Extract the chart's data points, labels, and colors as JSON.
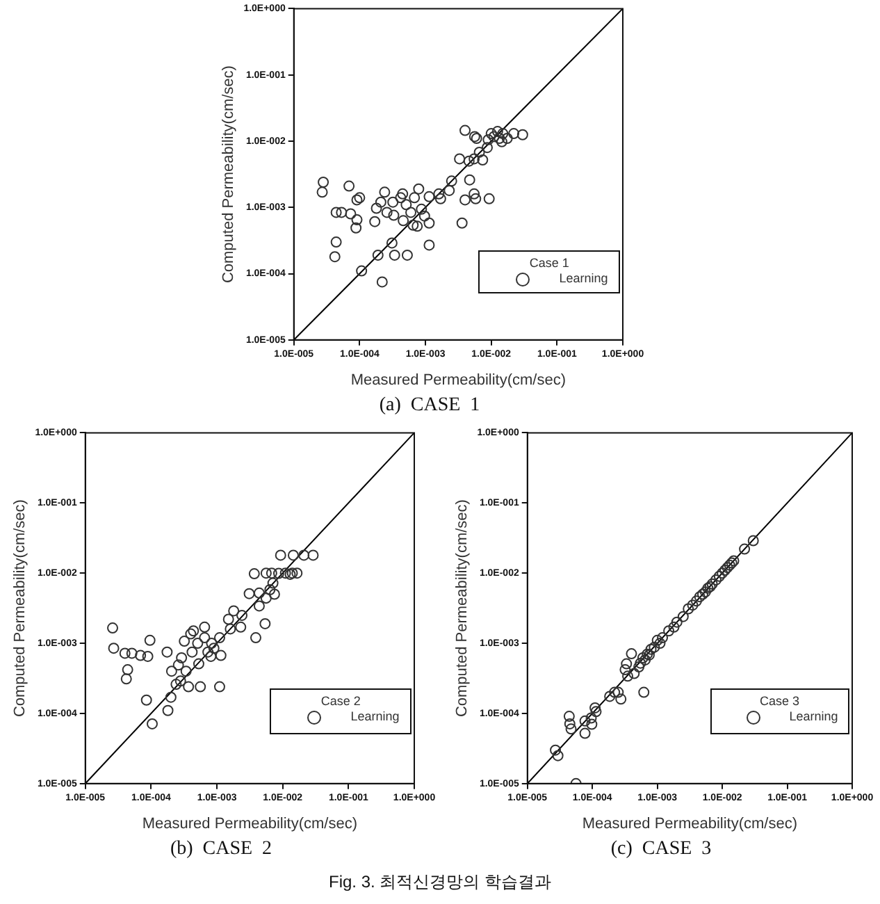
{
  "chart_data": [
    {
      "type": "scatter",
      "xlabel": "Measured Permeability(cm/sec)",
      "ylabel": "Computed Permeability(cm/sec)",
      "legend_title": "Case 1",
      "legend": "bottom right",
      "grid": false,
      "log": "xy",
      "xlim": [
        1e-05,
        1
      ],
      "ylim": [
        1e-05,
        1
      ],
      "xticks": [
        {
          "value": 1e-05,
          "label": "1.0E-005"
        },
        {
          "value": 0.0001,
          "label": "1.0E-004"
        },
        {
          "value": 0.001,
          "label": "1.0E-003"
        },
        {
          "value": 0.01,
          "label": "1.0E-002"
        },
        {
          "value": 0.1,
          "label": "1.0E-001"
        },
        {
          "value": 1,
          "label": "1.0E+000"
        }
      ],
      "yticks": [
        {
          "value": 1e-05,
          "label": "1.0E-005"
        },
        {
          "value": 0.0001,
          "label": "1.0E-004"
        },
        {
          "value": 0.001,
          "label": "1.0E-003"
        },
        {
          "value": 0.01,
          "label": "1.0E-002"
        },
        {
          "value": 0.1,
          "label": "1.0E-001"
        },
        {
          "value": 1,
          "label": "1.0E+000"
        }
      ],
      "annotations": [
        "(a)  CASE  1"
      ],
      "series": [
        {
          "name": "Learning",
          "type": "scatter",
          "marker": "circle",
          "color": "#333333",
          "x": [
            2.8e-05,
            2.7e-05,
            6.9e-05,
            4.4e-05,
            5.3e-05,
            7.3e-05,
            9.1e-05,
            0.0001,
            9.1e-05,
            8.8e-05,
            4.4e-05,
            4.2e-05,
            0.000107,
            0.00022,
            0.00019,
            0.00034,
            0.00053,
            0.00031,
            0.00017,
            0.00018,
            0.00021,
            0.00024,
            0.00026,
            0.00032,
            0.00033,
            0.00042,
            0.00045,
            0.00051,
            0.00046,
            0.0006,
            0.00065,
            0.00068,
            0.00079,
            0.00075,
            0.00087,
            0.00097,
            0.00114,
            0.00114,
            0.00114,
            0.0016,
            0.0017,
            0.0023,
            0.0025,
            0.0036,
            0.004,
            0.0033,
            0.004,
            0.0047,
            0.0055,
            0.0058,
            0.0046,
            0.0055,
            0.0056,
            0.006,
            0.0066,
            0.0074,
            0.0087,
            0.009,
            0.0093,
            0.01,
            0.011,
            0.0125,
            0.0133,
            0.015,
            0.0175,
            0.0145,
            0.022,
            0.03
          ],
          "values": [
            0.0024,
            0.0017,
            0.0021,
            0.00084,
            0.00084,
            0.0008,
            0.0013,
            0.0014,
            0.00065,
            0.00049,
            0.0003,
            0.00018,
            0.00011,
            7.5e-05,
            0.00019,
            0.00019,
            0.00019,
            0.00029,
            0.00061,
            0.00097,
            0.0012,
            0.0017,
            0.00084,
            0.0012,
            0.00076,
            0.0014,
            0.0016,
            0.0011,
            0.00063,
            0.00084,
            0.00054,
            0.0014,
            0.0019,
            0.00052,
            0.00094,
            0.00074,
            0.00145,
            0.00058,
            0.00027,
            0.0016,
            0.00135,
            0.0018,
            0.0025,
            0.00058,
            0.0013,
            0.0054,
            0.0145,
            0.0026,
            0.0016,
            0.00135,
            0.005,
            0.0054,
            0.0117,
            0.011,
            0.0068,
            0.0052,
            0.008,
            0.0105,
            0.00135,
            0.013,
            0.0117,
            0.014,
            0.011,
            0.013,
            0.011,
            0.0098,
            0.013,
            0.0125
          ]
        },
        {
          "type": "line",
          "color": "#000000",
          "x": [
            1e-05,
            1
          ],
          "values": [
            1e-05,
            1
          ]
        }
      ]
    },
    {
      "type": "scatter",
      "xlabel": "Measured Permeability(cm/sec)",
      "ylabel": "Computed Permeability(cm/sec)",
      "legend_title": "Case 2",
      "legend": "bottom right",
      "grid": false,
      "log": "xy",
      "xlim": [
        1e-05,
        1
      ],
      "ylim": [
        1e-05,
        1
      ],
      "xticks": [
        {
          "value": 1e-05,
          "label": "1.0E-005"
        },
        {
          "value": 0.0001,
          "label": "1.0E-004"
        },
        {
          "value": 0.001,
          "label": "1.0E-003"
        },
        {
          "value": 0.01,
          "label": "1.0E-002"
        },
        {
          "value": 0.1,
          "label": "1.0E-001"
        },
        {
          "value": 1,
          "label": "1.0E+000"
        }
      ],
      "yticks": [
        {
          "value": 1e-05,
          "label": "1.0E-005"
        },
        {
          "value": 0.0001,
          "label": "1.0E-004"
        },
        {
          "value": 0.001,
          "label": "1.0E-003"
        },
        {
          "value": 0.01,
          "label": "1.0E-002"
        },
        {
          "value": 0.1,
          "label": "1.0E-001"
        },
        {
          "value": 1,
          "label": "1.0E+000"
        }
      ],
      "annotations": [
        "(b)  CASE  2"
      ],
      "series": [
        {
          "name": "Learning",
          "type": "scatter",
          "marker": "circle",
          "color": "#333333",
          "x": [
            2.6e-05,
            2.7e-05,
            4e-05,
            5.1e-05,
            6.9e-05,
            8.9e-05,
            9.6e-05,
            4.4e-05,
            4.2e-05,
            8.5e-05,
            0.000104,
            0.00018,
            0.0002,
            0.000175,
            0.000205,
            0.00024,
            0.00028,
            0.00029,
            0.00026,
            0.00032,
            0.00037,
            0.00034,
            0.0004,
            0.00044,
            0.00042,
            0.00051,
            0.00056,
            0.00053,
            0.00065,
            0.00065,
            0.00073,
            0.00083,
            0.0009,
            0.00081,
            0.0011,
            0.00115,
            0.0011,
            0.0016,
            0.0015,
            0.0018,
            0.0023,
            0.0024,
            0.0031,
            0.0039,
            0.0037,
            0.0044,
            0.0044,
            0.0054,
            0.0056,
            0.0056,
            0.0064,
            0.0071,
            0.0075,
            0.0068,
            0.0087,
            0.0093,
            0.011,
            0.013,
            0.0145,
            0.014,
            0.0165,
            0.021,
            0.029
          ],
          "values": [
            0.00165,
            0.00085,
            0.00072,
            0.00072,
            0.00067,
            0.00065,
            0.0011,
            0.00042,
            0.00031,
            0.000155,
            7.1e-05,
            0.00011,
            0.00017,
            0.00075,
            0.0004,
            0.00026,
            0.00029,
            0.00062,
            0.00049,
            0.00107,
            0.00024,
            0.0004,
            0.00136,
            0.0015,
            0.00075,
            0.001,
            0.00024,
            0.00051,
            0.0017,
            0.0012,
            0.00075,
            0.001,
            0.00085,
            0.00065,
            0.0012,
            0.00067,
            0.00024,
            0.0016,
            0.0022,
            0.0029,
            0.0017,
            0.0025,
            0.0051,
            0.0012,
            0.0098,
            0.0034,
            0.0052,
            0.0019,
            0.01,
            0.0044,
            0.0058,
            0.0072,
            0.005,
            0.01,
            0.0099,
            0.018,
            0.01,
            0.0096,
            0.018,
            0.01,
            0.01,
            0.018,
            0.018
          ]
        },
        {
          "type": "line",
          "color": "#000000",
          "x": [
            1e-05,
            1
          ],
          "values": [
            1e-05,
            1
          ]
        }
      ]
    },
    {
      "type": "scatter",
      "xlabel": "Measured Permeability(cm/sec)",
      "ylabel": "Computed Permeability(cm/sec)",
      "legend_title": "Case 3",
      "legend": "bottom right",
      "grid": false,
      "log": "xy",
      "xlim": [
        1e-05,
        1
      ],
      "ylim": [
        1e-05,
        1
      ],
      "xticks": [
        {
          "value": 1e-05,
          "label": "1.0E-005"
        },
        {
          "value": 0.0001,
          "label": "1.0E-004"
        },
        {
          "value": 0.001,
          "label": "1.0E-003"
        },
        {
          "value": 0.01,
          "label": "1.0E-002"
        },
        {
          "value": 0.1,
          "label": "1.0E-001"
        },
        {
          "value": 1,
          "label": "1.0E+000"
        }
      ],
      "yticks": [
        {
          "value": 1e-05,
          "label": "1.0E-005"
        },
        {
          "value": 0.0001,
          "label": "1.0E-004"
        },
        {
          "value": 0.001,
          "label": "1.0E-003"
        },
        {
          "value": 0.01,
          "label": "1.0E-002"
        },
        {
          "value": 0.1,
          "label": "1.0E-001"
        },
        {
          "value": 1,
          "label": "1.0E+000"
        }
      ],
      "annotations": [
        "(c)  CASE  3",
        "Fig. 3. 최적신경망의 학습결과"
      ],
      "series": [
        {
          "name": "Learning",
          "type": "scatter",
          "marker": "circle",
          "color": "#333333",
          "x": [
            2.7e-05,
            2.95e-05,
            4.4e-05,
            4.5e-05,
            4.7e-05,
            7.7e-05,
            7.7e-05,
            9.6e-05,
            9.8e-05,
            0.00011,
            0.000114,
            0.000185,
            0.00022,
            0.00025,
            0.000275,
            0.00032,
            0.00035,
            0.000335,
            0.0004,
            0.00044,
            0.00052,
            0.00062,
            5.6e-05,
            0.00055,
            0.0006,
            0.00065,
            0.0007,
            0.00075,
            0.0008,
            0.0009,
            0.001,
            0.0011,
            0.0012,
            0.0015,
            0.0018,
            0.002,
            0.0025,
            0.003,
            0.0035,
            0.004,
            0.0045,
            0.005,
            0.0055,
            0.006,
            0.0065,
            0.007,
            0.008,
            0.009,
            0.01,
            0.011,
            0.012,
            0.013,
            0.014,
            0.015,
            0.022,
            0.03
          ],
          "values": [
            3e-05,
            2.5e-05,
            9.1e-05,
            7.1e-05,
            6e-05,
            7.8e-05,
            5.2e-05,
            8.6e-05,
            7e-05,
            0.00012,
            0.000106,
            0.000175,
            0.0002,
            0.0002,
            0.00016,
            0.00042,
            0.00034,
            0.00051,
            0.00071,
            0.00037,
            0.00046,
            0.0002,
            1e-05,
            0.00052,
            0.00062,
            0.00058,
            0.0007,
            0.00068,
            0.00082,
            0.00088,
            0.0011,
            0.001,
            0.0012,
            0.0015,
            0.0017,
            0.002,
            0.0024,
            0.0031,
            0.0035,
            0.004,
            0.0046,
            0.005,
            0.0054,
            0.0061,
            0.0064,
            0.007,
            0.008,
            0.009,
            0.01,
            0.011,
            0.012,
            0.013,
            0.014,
            0.015,
            0.022,
            0.029
          ]
        },
        {
          "type": "line",
          "color": "#000000",
          "x": [
            1e-05,
            1
          ],
          "values": [
            1e-05,
            1
          ]
        }
      ]
    }
  ]
}
